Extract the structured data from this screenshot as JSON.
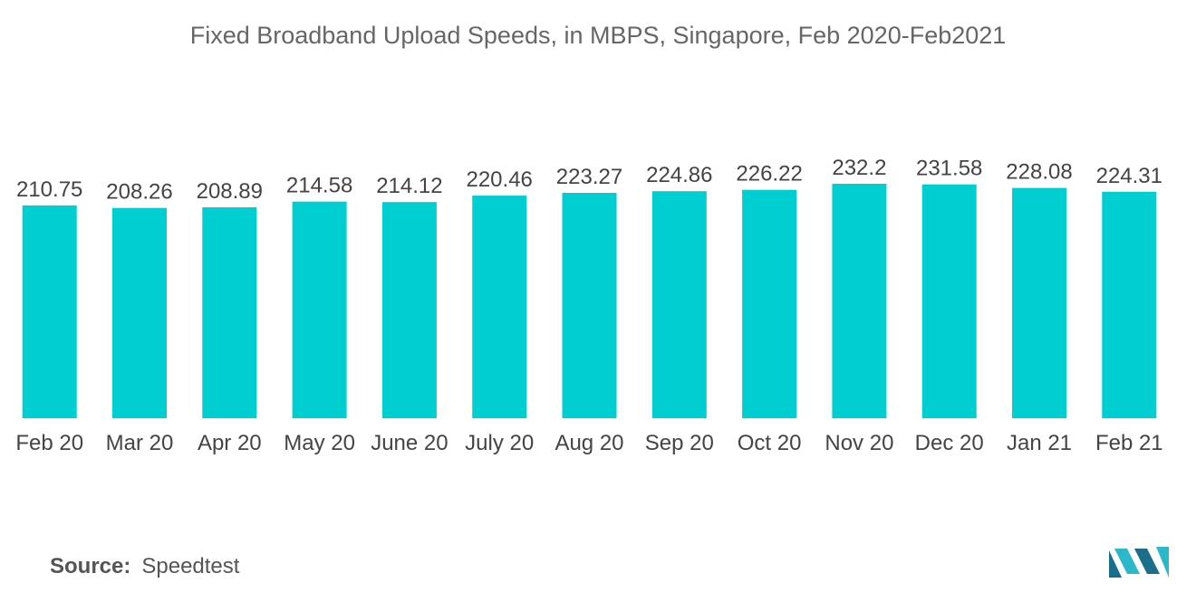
{
  "chart_data": {
    "type": "bar",
    "title": "Fixed Broadband Upload Speeds, in MBPS, Singapore, Feb 2020-Feb2021",
    "categories": [
      "Feb 20",
      "Mar 20",
      "Apr 20",
      "May 20",
      "June 20",
      "July 20",
      "Aug 20",
      "Sep 20",
      "Oct 20",
      "Nov 20",
      "Dec 20",
      "Jan 21",
      "Feb 21"
    ],
    "series": [
      {
        "values": [
          210.75,
          208.26,
          208.89,
          214.58,
          214.12,
          220.46,
          223.27,
          224.86,
          226.22,
          232.2,
          231.58,
          228.08,
          224.31
        ]
      }
    ],
    "value_labels": [
      "210.75",
      "208.26",
      "208.89",
      "214.58",
      "214.12",
      "220.46",
      "223.27",
      "224.86",
      "226.22",
      "232.2",
      "231.58",
      "228.08",
      "224.31"
    ],
    "ylim": [
      0,
      232.2
    ],
    "bar_color": "#00CED1",
    "grid": false,
    "legend": "none"
  },
  "source": {
    "label": "Source:",
    "value": "Speedtest"
  },
  "colors": {
    "title": "#666666",
    "label": "#444444",
    "bar": "#00CED1",
    "logo_dark": "#1a6e8a",
    "logo_light": "#2bb8c9"
  },
  "logo_icon": "mordor-intelligence-logo-icon"
}
